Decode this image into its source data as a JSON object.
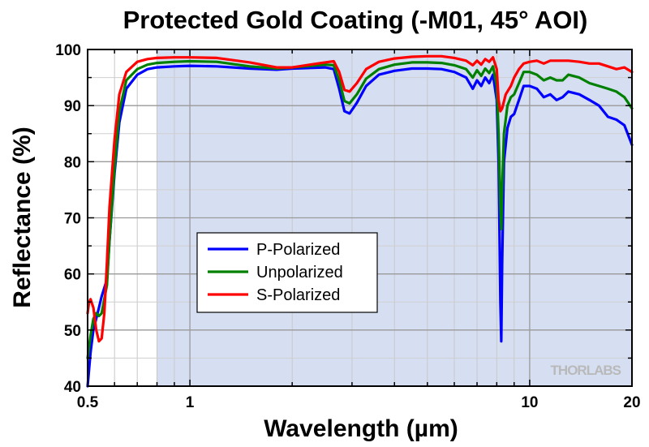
{
  "chart_data": {
    "type": "line",
    "title": "Protected Gold Coating (-M01, 45° AOI)",
    "xlabel": "Wavelength (µm)",
    "ylabel": "Reflectance (%)",
    "x_scale": "log",
    "xlim": [
      0.5,
      20
    ],
    "ylim": [
      40,
      100
    ],
    "x_ticks": [
      0.5,
      1,
      10,
      20
    ],
    "x_tick_labels": [
      "0.5",
      "1",
      "10",
      "20"
    ],
    "y_ticks": [
      40,
      50,
      60,
      70,
      80,
      90,
      100
    ],
    "y_tick_labels": [
      "40",
      "50",
      "60",
      "70",
      "80",
      "90",
      "100"
    ],
    "grid": true,
    "shaded_range": [
      0.8,
      20
    ],
    "legend_position": "center-left",
    "watermark": "THORLABS",
    "series": [
      {
        "name": "P-Polarized",
        "color": "#0000ff",
        "x": [
          0.5,
          0.51,
          0.52,
          0.53,
          0.54,
          0.55,
          0.57,
          0.58,
          0.6,
          0.62,
          0.65,
          0.7,
          0.75,
          0.8,
          0.9,
          1.0,
          1.2,
          1.5,
          1.8,
          2.0,
          2.5,
          2.65,
          2.75,
          2.85,
          2.95,
          3.1,
          3.3,
          3.6,
          4.0,
          4.5,
          5.0,
          5.5,
          6.0,
          6.5,
          6.8,
          7.0,
          7.2,
          7.4,
          7.6,
          7.8,
          8.0,
          8.1,
          8.2,
          8.25,
          8.3,
          8.4,
          8.6,
          8.8,
          9.0,
          9.3,
          9.6,
          10.0,
          10.5,
          11.0,
          11.5,
          12.0,
          12.5,
          13.0,
          14.0,
          15.0,
          16.0,
          17.0,
          18.0,
          19.0,
          20.0
        ],
        "y": [
          40,
          46,
          50,
          52,
          54,
          56,
          59,
          66,
          78,
          87,
          93,
          95.5,
          96.5,
          96.8,
          97,
          97.1,
          97,
          96.6,
          96.4,
          96.6,
          96.8,
          96.5,
          93,
          89,
          88.6,
          90.5,
          93.5,
          95.5,
          96.2,
          96.6,
          96.6,
          96.5,
          96,
          95,
          93,
          94.5,
          93.5,
          95,
          94,
          95.5,
          91,
          80,
          55,
          48,
          62,
          80,
          86,
          88,
          88.5,
          91,
          93.5,
          93.5,
          93,
          91.5,
          92,
          91,
          91.5,
          92.5,
          92,
          91,
          90,
          88,
          87.5,
          86.5,
          83
        ]
      },
      {
        "name": "Unpolarized",
        "color": "#008000",
        "x": [
          0.5,
          0.51,
          0.52,
          0.53,
          0.54,
          0.55,
          0.57,
          0.58,
          0.6,
          0.62,
          0.65,
          0.7,
          0.75,
          0.8,
          0.9,
          1.0,
          1.2,
          1.5,
          1.8,
          2.0,
          2.5,
          2.65,
          2.75,
          2.85,
          2.95,
          3.1,
          3.3,
          3.6,
          4.0,
          4.5,
          5.0,
          5.5,
          6.0,
          6.5,
          6.8,
          7.0,
          7.2,
          7.4,
          7.6,
          7.8,
          8.0,
          8.1,
          8.2,
          8.25,
          8.3,
          8.4,
          8.6,
          8.8,
          9.0,
          9.3,
          9.6,
          10.0,
          10.5,
          11.0,
          11.5,
          12.0,
          12.5,
          13.0,
          14.0,
          15.0,
          16.0,
          17.0,
          18.0,
          19.0,
          20.0
        ],
        "y": [
          45,
          49,
          52,
          53,
          52.5,
          53,
          58,
          66,
          79,
          89,
          94.5,
          96.5,
          97.3,
          97.6,
          97.8,
          97.9,
          97.8,
          97,
          96.6,
          96.8,
          97.3,
          97.2,
          94.5,
          90.8,
          90.4,
          92,
          94.8,
          96.5,
          97.3,
          97.7,
          97.7,
          97.6,
          97.2,
          96.5,
          95,
          96.3,
          95.3,
          96.6,
          95.8,
          97,
          93.5,
          85,
          72,
          68,
          75,
          85,
          90,
          91.5,
          92,
          94,
          96,
          96,
          95.5,
          94.5,
          95,
          94.5,
          94.5,
          95.5,
          95,
          94,
          93.5,
          93,
          92.5,
          91.5,
          89.5
        ]
      },
      {
        "name": "S-Polarized",
        "color": "#ff0000",
        "x": [
          0.5,
          0.505,
          0.51,
          0.52,
          0.53,
          0.54,
          0.55,
          0.56,
          0.57,
          0.58,
          0.6,
          0.62,
          0.65,
          0.7,
          0.75,
          0.8,
          0.9,
          1.0,
          1.2,
          1.5,
          1.8,
          2.0,
          2.5,
          2.65,
          2.75,
          2.85,
          2.95,
          3.1,
          3.3,
          3.6,
          4.0,
          4.5,
          5.0,
          5.5,
          6.0,
          6.5,
          6.8,
          7.0,
          7.2,
          7.4,
          7.6,
          7.8,
          8.0,
          8.1,
          8.2,
          8.3,
          8.5,
          8.8,
          9.0,
          9.3,
          9.6,
          10.0,
          10.5,
          11.0,
          11.5,
          12.0,
          12.5,
          13.0,
          14.0,
          15.0,
          16.0,
          17.0,
          18.0,
          19.0,
          20.0
        ],
        "y": [
          53,
          55,
          55.5,
          54,
          50,
          48,
          48.5,
          53,
          62,
          72,
          84,
          92,
          96,
          97.8,
          98.3,
          98.5,
          98.6,
          98.6,
          98.5,
          97.7,
          96.8,
          96.8,
          97.7,
          97.9,
          96,
          92.8,
          92.5,
          94,
          96.5,
          97.8,
          98.4,
          98.7,
          98.8,
          98.8,
          98.5,
          98,
          97.2,
          98,
          97.3,
          98.3,
          97.8,
          98.6,
          96.5,
          91,
          89,
          89.5,
          92,
          93.5,
          95,
          96.5,
          97.5,
          97.8,
          98,
          97.5,
          98,
          98,
          98,
          98,
          97.8,
          97.5,
          97.5,
          97,
          96.5,
          96.8,
          96
        ]
      }
    ]
  }
}
